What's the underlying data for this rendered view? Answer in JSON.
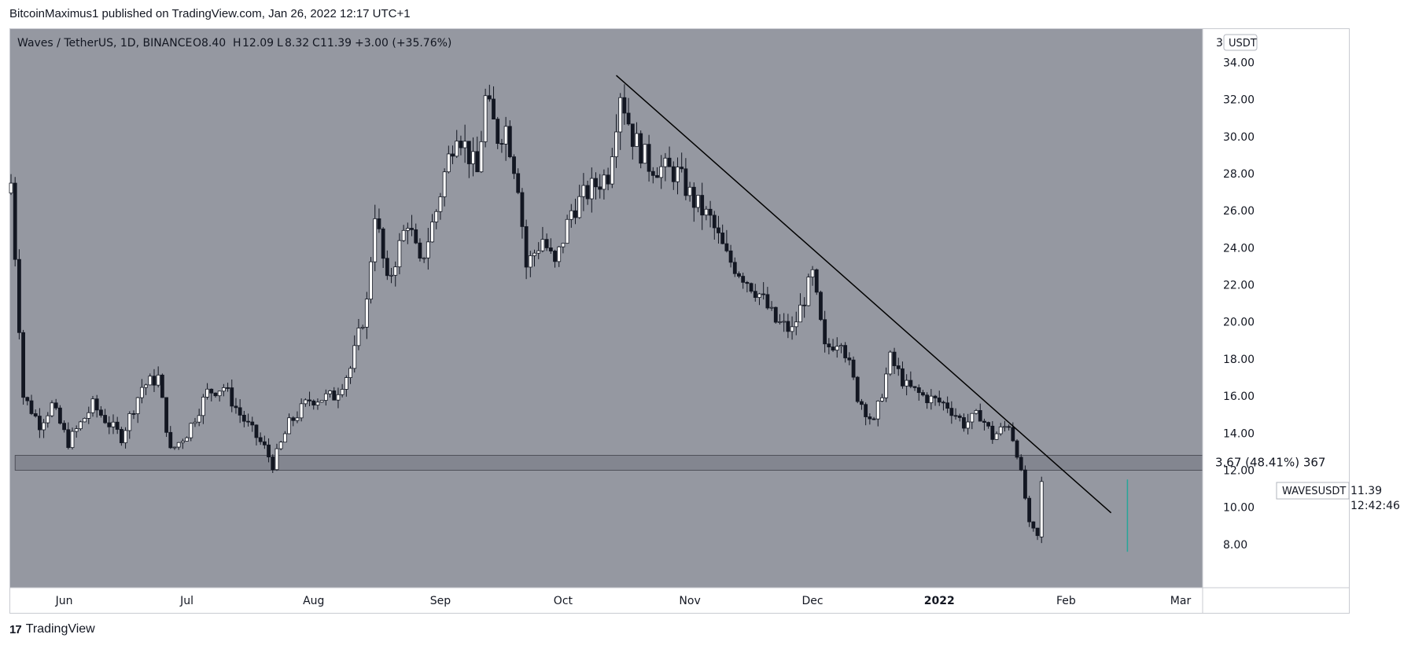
{
  "header": {
    "publisher": "BitcoinMaximus1 published on TradingView.com, Jan 26, 2022 12:17 UTC+1"
  },
  "footer": {
    "brand": "TradingView",
    "logo_icon": "tradingview-logo-icon"
  },
  "colors": {
    "plot_bg": "#9598a1",
    "up_candle": "#ffffff",
    "down_candle": "#131722",
    "trendline": "#000000",
    "zone": "#757884",
    "green_bar": "#26a69a"
  },
  "chart_data": {
    "type": "candlestick",
    "symbol_line": {
      "symbol": "Waves / TetherUS, 1D, BINANCE",
      "o_label": "O",
      "o_value": "8.40",
      "h_label": "H",
      "h_value": "12.09",
      "l_label": "L",
      "l_value": "8.32",
      "c_label": "C",
      "c_value": "11.39",
      "change": "+3.00 (+35.76%)"
    },
    "currency_badge": "USDT",
    "price_axis_top_label": "3",
    "y_ticks": [
      "8.00",
      "10.00",
      "12.00",
      "14.00",
      "16.00",
      "18.00",
      "20.00",
      "22.00",
      "24.00",
      "26.00",
      "28.00",
      "30.00",
      "32.00",
      "34.00"
    ],
    "ylim": [
      6.0,
      35.5
    ],
    "x_ticks": [
      {
        "label": "Jun",
        "date": "2021-06-01"
      },
      {
        "label": "Jul",
        "date": "2021-07-01"
      },
      {
        "label": "Aug",
        "date": "2021-08-01"
      },
      {
        "label": "Sep",
        "date": "2021-09-01"
      },
      {
        "label": "Oct",
        "date": "2021-10-01"
      },
      {
        "label": "Nov",
        "date": "2021-11-01"
      },
      {
        "label": "Dec",
        "date": "2021-12-01"
      },
      {
        "label": "2022",
        "date": "2022-01-01",
        "bold": true
      },
      {
        "label": "Feb",
        "date": "2022-02-01"
      },
      {
        "label": "Mar",
        "date": "2022-03-01"
      }
    ],
    "xlim": [
      "2021-05-19",
      "2022-03-06"
    ],
    "anchors": [
      {
        "date": "2021-05-19",
        "price": 27.5
      },
      {
        "date": "2021-05-22",
        "price": 16.0
      },
      {
        "date": "2021-05-26",
        "price": 14.5
      },
      {
        "date": "2021-05-29",
        "price": 15.5
      },
      {
        "date": "2021-06-02",
        "price": 13.5
      },
      {
        "date": "2021-06-08",
        "price": 15.5
      },
      {
        "date": "2021-06-12",
        "price": 14.5
      },
      {
        "date": "2021-06-15",
        "price": 13.8
      },
      {
        "date": "2021-06-20",
        "price": 16.5
      },
      {
        "date": "2021-06-24",
        "price": 17.0
      },
      {
        "date": "2021-06-27",
        "price": 13.0
      },
      {
        "date": "2021-07-01",
        "price": 14.0
      },
      {
        "date": "2021-07-06",
        "price": 16.2
      },
      {
        "date": "2021-07-10",
        "price": 16.5
      },
      {
        "date": "2021-07-14",
        "price": 15.0
      },
      {
        "date": "2021-07-20",
        "price": 13.2
      },
      {
        "date": "2021-07-22",
        "price": 12.3
      },
      {
        "date": "2021-07-26",
        "price": 14.5
      },
      {
        "date": "2021-07-31",
        "price": 15.8
      },
      {
        "date": "2021-08-06",
        "price": 16.0
      },
      {
        "date": "2021-08-10",
        "price": 17.5
      },
      {
        "date": "2021-08-14",
        "price": 21.0
      },
      {
        "date": "2021-08-16",
        "price": 26.0
      },
      {
        "date": "2021-08-19",
        "price": 22.0
      },
      {
        "date": "2021-08-24",
        "price": 25.5
      },
      {
        "date": "2021-08-27",
        "price": 23.0
      },
      {
        "date": "2021-08-31",
        "price": 26.0
      },
      {
        "date": "2021-09-02",
        "price": 28.0
      },
      {
        "date": "2021-09-05",
        "price": 30.5
      },
      {
        "date": "2021-09-08",
        "price": 29.0
      },
      {
        "date": "2021-09-10",
        "price": 28.0
      },
      {
        "date": "2021-09-12",
        "price": 32.0
      },
      {
        "date": "2021-09-15",
        "price": 30.0
      },
      {
        "date": "2021-09-17",
        "price": 30.5
      },
      {
        "date": "2021-09-20",
        "price": 27.5
      },
      {
        "date": "2021-09-22",
        "price": 23.0
      },
      {
        "date": "2021-09-26",
        "price": 24.5
      },
      {
        "date": "2021-09-29",
        "price": 23.0
      },
      {
        "date": "2021-10-03",
        "price": 26.0
      },
      {
        "date": "2021-10-07",
        "price": 27.0
      },
      {
        "date": "2021-10-12",
        "price": 28.0
      },
      {
        "date": "2021-10-15",
        "price": 32.5
      },
      {
        "date": "2021-10-18",
        "price": 30.0
      },
      {
        "date": "2021-10-22",
        "price": 28.5
      },
      {
        "date": "2021-10-29",
        "price": 28.0
      },
      {
        "date": "2021-11-02",
        "price": 26.5
      },
      {
        "date": "2021-11-06",
        "price": 25.5
      },
      {
        "date": "2021-11-10",
        "price": 23.5
      },
      {
        "date": "2021-11-14",
        "price": 22.5
      },
      {
        "date": "2021-11-18",
        "price": 21.5
      },
      {
        "date": "2021-11-22",
        "price": 20.0
      },
      {
        "date": "2021-11-26",
        "price": 19.5
      },
      {
        "date": "2021-12-01",
        "price": 22.5
      },
      {
        "date": "2021-12-04",
        "price": 18.5
      },
      {
        "date": "2021-12-08",
        "price": 19.2
      },
      {
        "date": "2021-12-12",
        "price": 16.0
      },
      {
        "date": "2021-12-16",
        "price": 14.5
      },
      {
        "date": "2021-12-20",
        "price": 18.0
      },
      {
        "date": "2021-12-24",
        "price": 16.5
      },
      {
        "date": "2021-12-28",
        "price": 16.0
      },
      {
        "date": "2022-01-03",
        "price": 15.5
      },
      {
        "date": "2022-01-07",
        "price": 14.5
      },
      {
        "date": "2022-01-11",
        "price": 15.0
      },
      {
        "date": "2022-01-14",
        "price": 13.8
      },
      {
        "date": "2022-01-18",
        "price": 14.5
      },
      {
        "date": "2022-01-20",
        "price": 13.0
      },
      {
        "date": "2022-01-22",
        "price": 10.5
      },
      {
        "date": "2022-01-23",
        "price": 9.0
      },
      {
        "date": "2022-01-25",
        "price": 8.4
      },
      {
        "date": "2022-01-26",
        "price": 11.39
      }
    ],
    "trendline": {
      "from": {
        "date": "2021-10-14",
        "price": 33.3
      },
      "to": {
        "date": "2022-02-12",
        "price": 9.7
      }
    },
    "support_zone": {
      "from_date": "2021-05-20",
      "to_date": "2022-03-06",
      "low": 12.0,
      "high": 12.8,
      "label": "3.67 (48.41%) 367"
    },
    "measure_bar": {
      "date": "2022-02-16",
      "low": 7.6,
      "high": 11.5
    },
    "last_price_label": {
      "symbol": "WAVESUSDT",
      "price": "11.39",
      "countdown": "12:42:46",
      "price_value": 11.39
    }
  }
}
